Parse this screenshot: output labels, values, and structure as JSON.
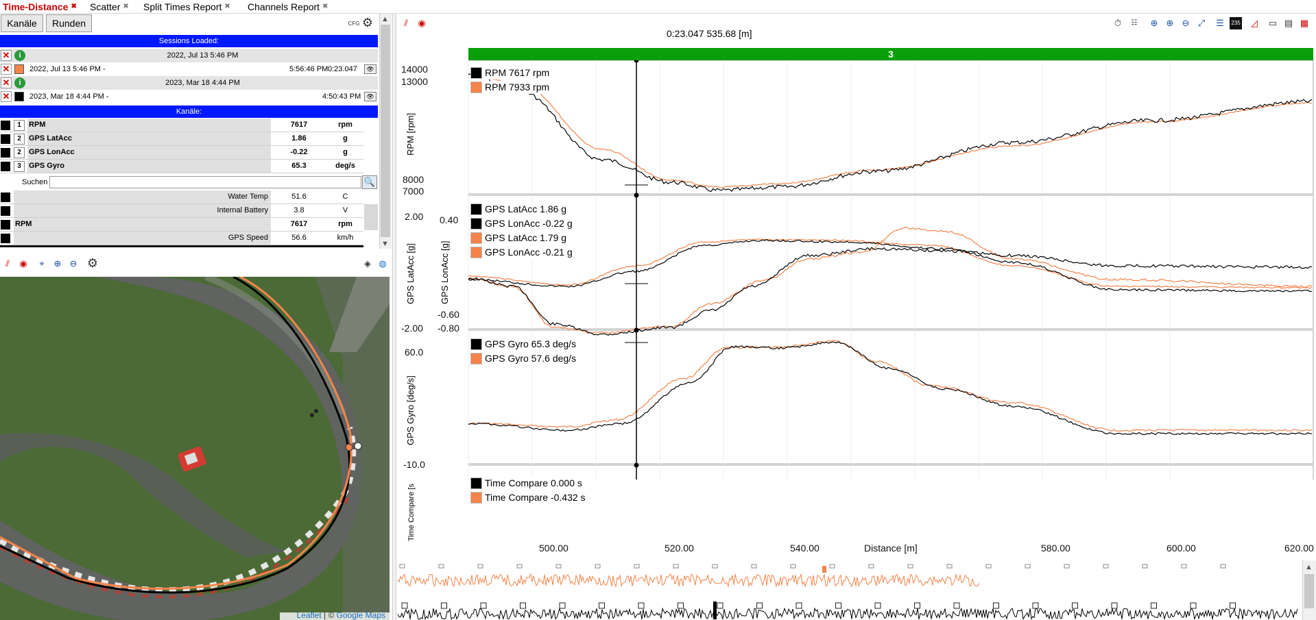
{
  "tabs": [
    {
      "label": "Time-Distance",
      "active": true
    },
    {
      "label": "Scatter"
    },
    {
      "label": "Split Times Report"
    },
    {
      "label": "Channels Report"
    }
  ],
  "toolbar": {
    "btn_channels": "Kanäle",
    "btn_laps": "Runden",
    "cfg_label": "CFG"
  },
  "sessions": {
    "header": "Sessions Loaded:",
    "items": [
      {
        "group": "2022, Jul 13 5:46 PM",
        "label": "2022, Jul 13 5:46 PM -",
        "end": "5:56:46 PM",
        "time": "0:23.047",
        "color": "#f4844a"
      },
      {
        "group": "2023, Mar 18 4:44 PM",
        "label": "2023, Mar 18 4:44 PM -",
        "end": "4:50:43 PM",
        "time": "",
        "color": "#000000"
      }
    ]
  },
  "channels": {
    "header": "Kanäle:",
    "selected": [
      {
        "num": "1",
        "name": "RPM",
        "value": "7617",
        "unit": "rpm"
      },
      {
        "num": "2",
        "name": "GPS LatAcc",
        "value": "1.86",
        "unit": "g"
      },
      {
        "num": "2",
        "name": "GPS LonAcc",
        "value": "-0.22",
        "unit": "g"
      },
      {
        "num": "3",
        "name": "GPS Gyro",
        "value": "65.3",
        "unit": "deg/s"
      }
    ],
    "search_label": "Suchen",
    "search_value": "",
    "list": [
      {
        "name": "Water Temp",
        "value": "51.6",
        "unit": "C",
        "bold": false
      },
      {
        "name": "Internal Battery",
        "value": "3.8",
        "unit": "V",
        "bold": false
      },
      {
        "name": "RPM",
        "value": "7617",
        "unit": "rpm",
        "bold": true
      },
      {
        "name": "GPS Speed",
        "value": "56.6",
        "unit": "km/h",
        "bold": false
      }
    ]
  },
  "map": {
    "attribution_leaflet": "Leaflet",
    "attribution_sep": " | © ",
    "attribution_google": "Google Maps"
  },
  "cursor": {
    "readout": "0:23.047  535.68 [m]",
    "lap_label": "3"
  },
  "colors": {
    "session_a": "#f4844a",
    "session_b": "#000000",
    "lap_bar": "#0a9f0a",
    "tab_active": "#cc0000",
    "blue_header": "#0018ff"
  },
  "panels": {
    "rpm": {
      "ylabel": "RPM [rpm]",
      "ticks": [
        "14000",
        "13000",
        "8000",
        "7000"
      ],
      "legend": [
        {
          "text": "RPM  7617  rpm",
          "color": "#000000"
        },
        {
          "text": "RPM  7933  rpm",
          "color": "#f4844a"
        }
      ]
    },
    "acc": {
      "ylabel_left": "GPS LatAcc [g]",
      "ylabel_right": "GPS LonAcc [g]",
      "ticks_left": [
        "2.00",
        "-2.00"
      ],
      "ticks_right": [
        "0.40",
        "-0.60",
        "-0.80"
      ],
      "legend": [
        {
          "text": "GPS LatAcc    1.86  g",
          "color": "#000000"
        },
        {
          "text": "GPS LonAcc   -0.22  g",
          "color": "#000000"
        },
        {
          "text": "GPS LatAcc    1.79  g",
          "color": "#f4844a"
        },
        {
          "text": "GPS LonAcc   -0.21  g",
          "color": "#f4844a"
        }
      ]
    },
    "gyro": {
      "ylabel": "GPS Gyro [deg/s]",
      "ticks": [
        "60.0",
        "-10.0"
      ],
      "legend": [
        {
          "text": "GPS Gyro   65.3  deg/s",
          "color": "#000000"
        },
        {
          "text": "GPS Gyro   57.6  deg/s",
          "color": "#f4844a"
        }
      ]
    },
    "timecmp": {
      "ylabel": "Time Compare [s",
      "legend": [
        {
          "text": "Time Compare    0.000  s",
          "color": "#000000"
        },
        {
          "text": "Time Compare   -0.432  s",
          "color": "#f4844a"
        }
      ]
    }
  },
  "xaxis": {
    "label": "Distance [m]",
    "ticks": [
      "500.00",
      "520.00",
      "540.00",
      "580.00",
      "600.00",
      "620.00"
    ]
  }
}
